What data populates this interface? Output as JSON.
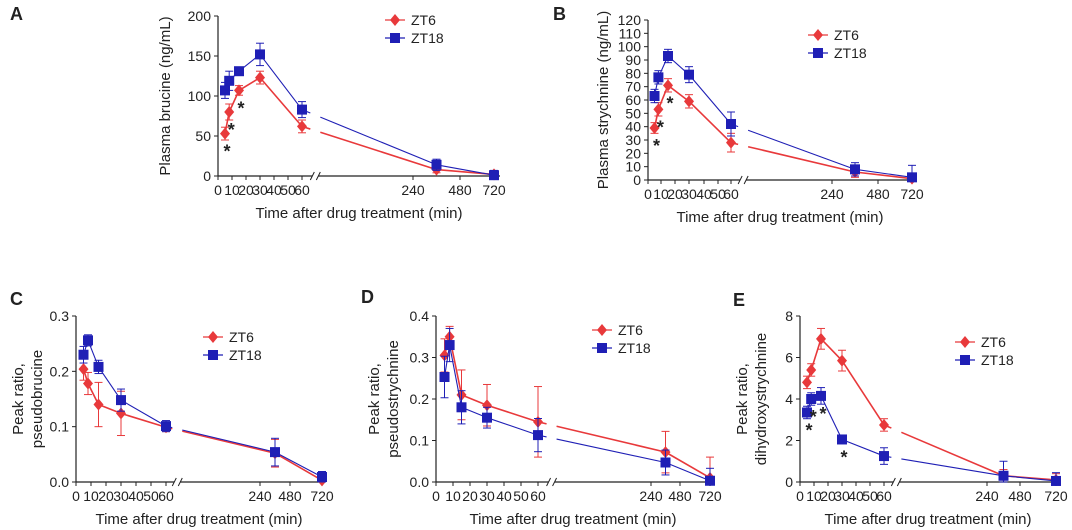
{
  "figure": {
    "series_names": [
      "ZT6",
      "ZT18"
    ],
    "colors": {
      "ZT6": "#e8393b",
      "ZT18": "#1f1fb5",
      "axis": "#222222"
    },
    "x_display_ticks": [
      0,
      10,
      20,
      30,
      40,
      50,
      60,
      240,
      480,
      720
    ],
    "x_display_ticks_D": [
      0,
      10,
      20,
      30,
      40,
      50,
      60,
      240,
      480,
      720
    ]
  },
  "chart_data": [
    {
      "panel": "A",
      "type": "line",
      "xlabel": "Time after drug treatment (min)",
      "ylabel": "Plasma brucine (ng/mL)",
      "ylim": [
        0,
        200
      ],
      "yticks": [
        0,
        50,
        100,
        150,
        200
      ],
      "x_tick_labels": [
        "0",
        "10",
        "20",
        "30",
        "40",
        "50",
        "60",
        "240",
        "480",
        "720"
      ],
      "legend_position": "top-right",
      "series": [
        {
          "name": "ZT6",
          "marker": "diamond",
          "x": [
            5,
            8,
            15,
            30,
            60,
            360,
            720
          ],
          "y": [
            53,
            80,
            107,
            123,
            62,
            8,
            2
          ],
          "err": [
            8,
            10,
            6,
            8,
            8,
            4,
            3
          ]
        },
        {
          "name": "ZT18",
          "marker": "square",
          "x": [
            5,
            8,
            15,
            30,
            60,
            360,
            720
          ],
          "y": [
            107,
            119,
            131,
            152,
            83,
            14,
            1
          ],
          "err": [
            10,
            12,
            5,
            14,
            10,
            7,
            6
          ]
        }
      ],
      "asterisks": [
        {
          "x": 5,
          "y": 53
        },
        {
          "x": 8,
          "y": 80
        },
        {
          "x": 15,
          "y": 107
        }
      ]
    },
    {
      "panel": "B",
      "type": "line",
      "xlabel": "Time after drug treatment (min)",
      "ylabel": "Plasma strychnine (ng/mL)",
      "ylim": [
        0,
        120
      ],
      "yticks": [
        0,
        10,
        20,
        30,
        40,
        50,
        60,
        70,
        80,
        90,
        100,
        110,
        120
      ],
      "x_tick_labels": [
        "0",
        "10",
        "20",
        "30",
        "40",
        "50",
        "60",
        "240",
        "480",
        "720"
      ],
      "legend_position": "top-right",
      "series": [
        {
          "name": "ZT6",
          "marker": "diamond",
          "x": [
            5,
            8,
            15,
            30,
            60,
            360,
            720
          ],
          "y": [
            39,
            53,
            71,
            59,
            28,
            6,
            1
          ],
          "err": [
            4,
            5,
            5,
            5,
            7,
            4,
            3
          ]
        },
        {
          "name": "ZT18",
          "marker": "square",
          "x": [
            5,
            8,
            15,
            30,
            60,
            360,
            720
          ],
          "y": [
            63,
            77,
            93,
            79,
            42,
            8,
            2
          ],
          "err": [
            5,
            5,
            5,
            6,
            9,
            5,
            9
          ]
        }
      ],
      "asterisks": [
        {
          "x": 5,
          "y": 39
        },
        {
          "x": 8,
          "y": 53
        },
        {
          "x": 15,
          "y": 71
        }
      ]
    },
    {
      "panel": "C",
      "type": "line",
      "xlabel": "Time after drug treatment (min)",
      "ylabel": "Peak ratio,\npseudobrucine",
      "ylim": [
        0,
        0.3
      ],
      "yticks": [
        0,
        0.1,
        0.2,
        0.3
      ],
      "ytick_labels": [
        "0.0",
        "0.1",
        "0.2",
        "0.3"
      ],
      "x_tick_labels": [
        "0",
        "10",
        "20",
        "30",
        "40",
        "50",
        "60",
        "240",
        "480",
        "720"
      ],
      "legend_position": "top-right",
      "series": [
        {
          "name": "ZT6",
          "marker": "diamond",
          "x": [
            5,
            8,
            15,
            30,
            60,
            360,
            720
          ],
          "y": [
            0.204,
            0.178,
            0.14,
            0.124,
            0.099,
            0.052,
            0.003
          ],
          "err": [
            0.02,
            0.02,
            0.04,
            0.04,
            0.008,
            0.025,
            0.01
          ]
        },
        {
          "name": "ZT18",
          "marker": "square",
          "x": [
            5,
            8,
            15,
            30,
            60,
            360,
            720
          ],
          "y": [
            0.23,
            0.256,
            0.208,
            0.148,
            0.101,
            0.054,
            0.009
          ],
          "err": [
            0.015,
            0.01,
            0.012,
            0.02,
            0.01,
            0.025,
            0.01
          ]
        }
      ],
      "asterisks": []
    },
    {
      "panel": "D",
      "type": "line",
      "xlabel": "Time after drug treatment (min)",
      "ylabel": "Peak ratio,\npseudostrychnine",
      "ylim": [
        0,
        0.4
      ],
      "yticks": [
        0,
        0.1,
        0.2,
        0.3,
        0.4
      ],
      "ytick_labels": [
        "0.0",
        "0.1",
        "0.2",
        "0.3",
        "0.4"
      ],
      "x_tick_labels": [
        "0",
        "10",
        "20",
        "30",
        "40",
        "50",
        "60",
        "240",
        "480",
        "720"
      ],
      "legend_position": "top-right",
      "series": [
        {
          "name": "ZT6",
          "marker": "diamond",
          "x": [
            5,
            8,
            15,
            30,
            60,
            360,
            720
          ],
          "y": [
            0.305,
            0.35,
            0.21,
            0.185,
            0.145,
            0.072,
            0.01
          ],
          "err": [
            0.04,
            0.025,
            0.06,
            0.05,
            0.085,
            0.05,
            0.05
          ]
        },
        {
          "name": "ZT18",
          "marker": "square",
          "x": [
            5,
            8,
            15,
            30,
            60,
            360,
            720
          ],
          "y": [
            0.253,
            0.33,
            0.18,
            0.155,
            0.113,
            0.047,
            0.003
          ],
          "err": [
            0.05,
            0.04,
            0.04,
            0.025,
            0.04,
            0.03,
            0.03
          ]
        }
      ],
      "asterisks": []
    },
    {
      "panel": "E",
      "type": "line",
      "xlabel": "Time after drug treatment (min)",
      "ylabel": "Peak ratio,\ndihydroxystrychnine",
      "ylim": [
        0,
        8
      ],
      "yticks": [
        0,
        2,
        4,
        6,
        8
      ],
      "x_tick_labels": [
        "0",
        "10",
        "20",
        "30",
        "40",
        "50",
        "60",
        "240",
        "480",
        "720"
      ],
      "legend_position": "top-right",
      "series": [
        {
          "name": "ZT6",
          "marker": "diamond",
          "x": [
            5,
            8,
            15,
            30,
            60,
            360,
            720
          ],
          "y": [
            4.8,
            5.4,
            6.9,
            5.85,
            2.75,
            0.3,
            0.1
          ],
          "err": [
            0.3,
            0.3,
            0.5,
            0.5,
            0.3,
            0.3,
            0.3
          ]
        },
        {
          "name": "ZT18",
          "marker": "square",
          "x": [
            5,
            8,
            15,
            30,
            60,
            360,
            720
          ],
          "y": [
            3.35,
            4.0,
            4.15,
            2.05,
            1.25,
            0.3,
            0.05
          ],
          "err": [
            0.3,
            0.3,
            0.4,
            0.2,
            0.4,
            0.7,
            0.4
          ]
        }
      ],
      "asterisks": [
        {
          "x": 5,
          "y": 3.35
        },
        {
          "x": 8,
          "y": 4.0
        },
        {
          "x": 15,
          "y": 4.15
        },
        {
          "x": 30,
          "y": 2.05
        }
      ]
    }
  ],
  "panel_letters": [
    "A",
    "B",
    "C",
    "D",
    "E"
  ]
}
